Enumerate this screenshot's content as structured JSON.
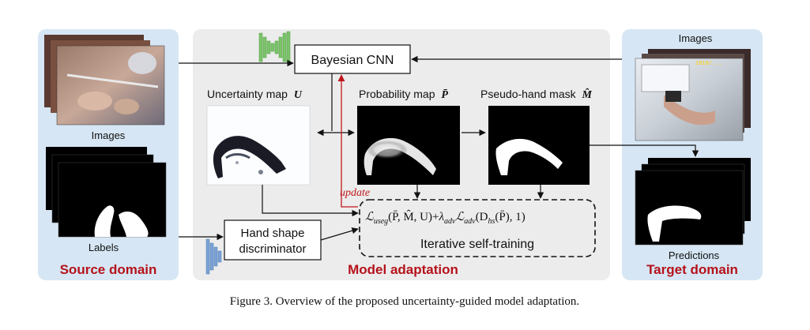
{
  "panels": {
    "source": {
      "title": "Source domain",
      "images_label": "Images",
      "labels_label": "Labels"
    },
    "adaptation": {
      "title": "Model adaptation"
    },
    "target": {
      "title": "Target domain",
      "images_label": "Images",
      "predictions_label": "Predictions"
    }
  },
  "nodes": {
    "bayesian_cnn": "Bayesian CNN",
    "discriminator_line1": "Hand shape",
    "discriminator_line2": "discriminator",
    "self_training": "Iterative self-training",
    "update": "update"
  },
  "maps": {
    "uncertainty": {
      "label": "Uncertainty map",
      "symbol": "U"
    },
    "probability": {
      "label": "Probability map",
      "symbol": "P̄"
    },
    "pseudo_mask": {
      "label": "Pseudo-hand mask",
      "symbol": "M̂"
    }
  },
  "loss": {
    "L1": "ℒ",
    "sub1": "useg",
    "args1": "(P̄, M̂, U)+",
    "lambda": "λ",
    "sub_lambda": "adv",
    "L2": "ℒ",
    "sub2": "adv",
    "args2a": "(D",
    "sub_d": "hs",
    "args2b": "(P̄), 1)"
  },
  "caption": "Figure 3. Overview of the proposed uncertainty-guided model adaptation.",
  "colors": {
    "panel_blue": "#d6e6f4",
    "panel_gray": "#ececec",
    "domain_red": "#b5121b",
    "update_red": "#c0171c",
    "cnn_green": "#7cc46a",
    "disc_blue": "#7aa2d6"
  }
}
